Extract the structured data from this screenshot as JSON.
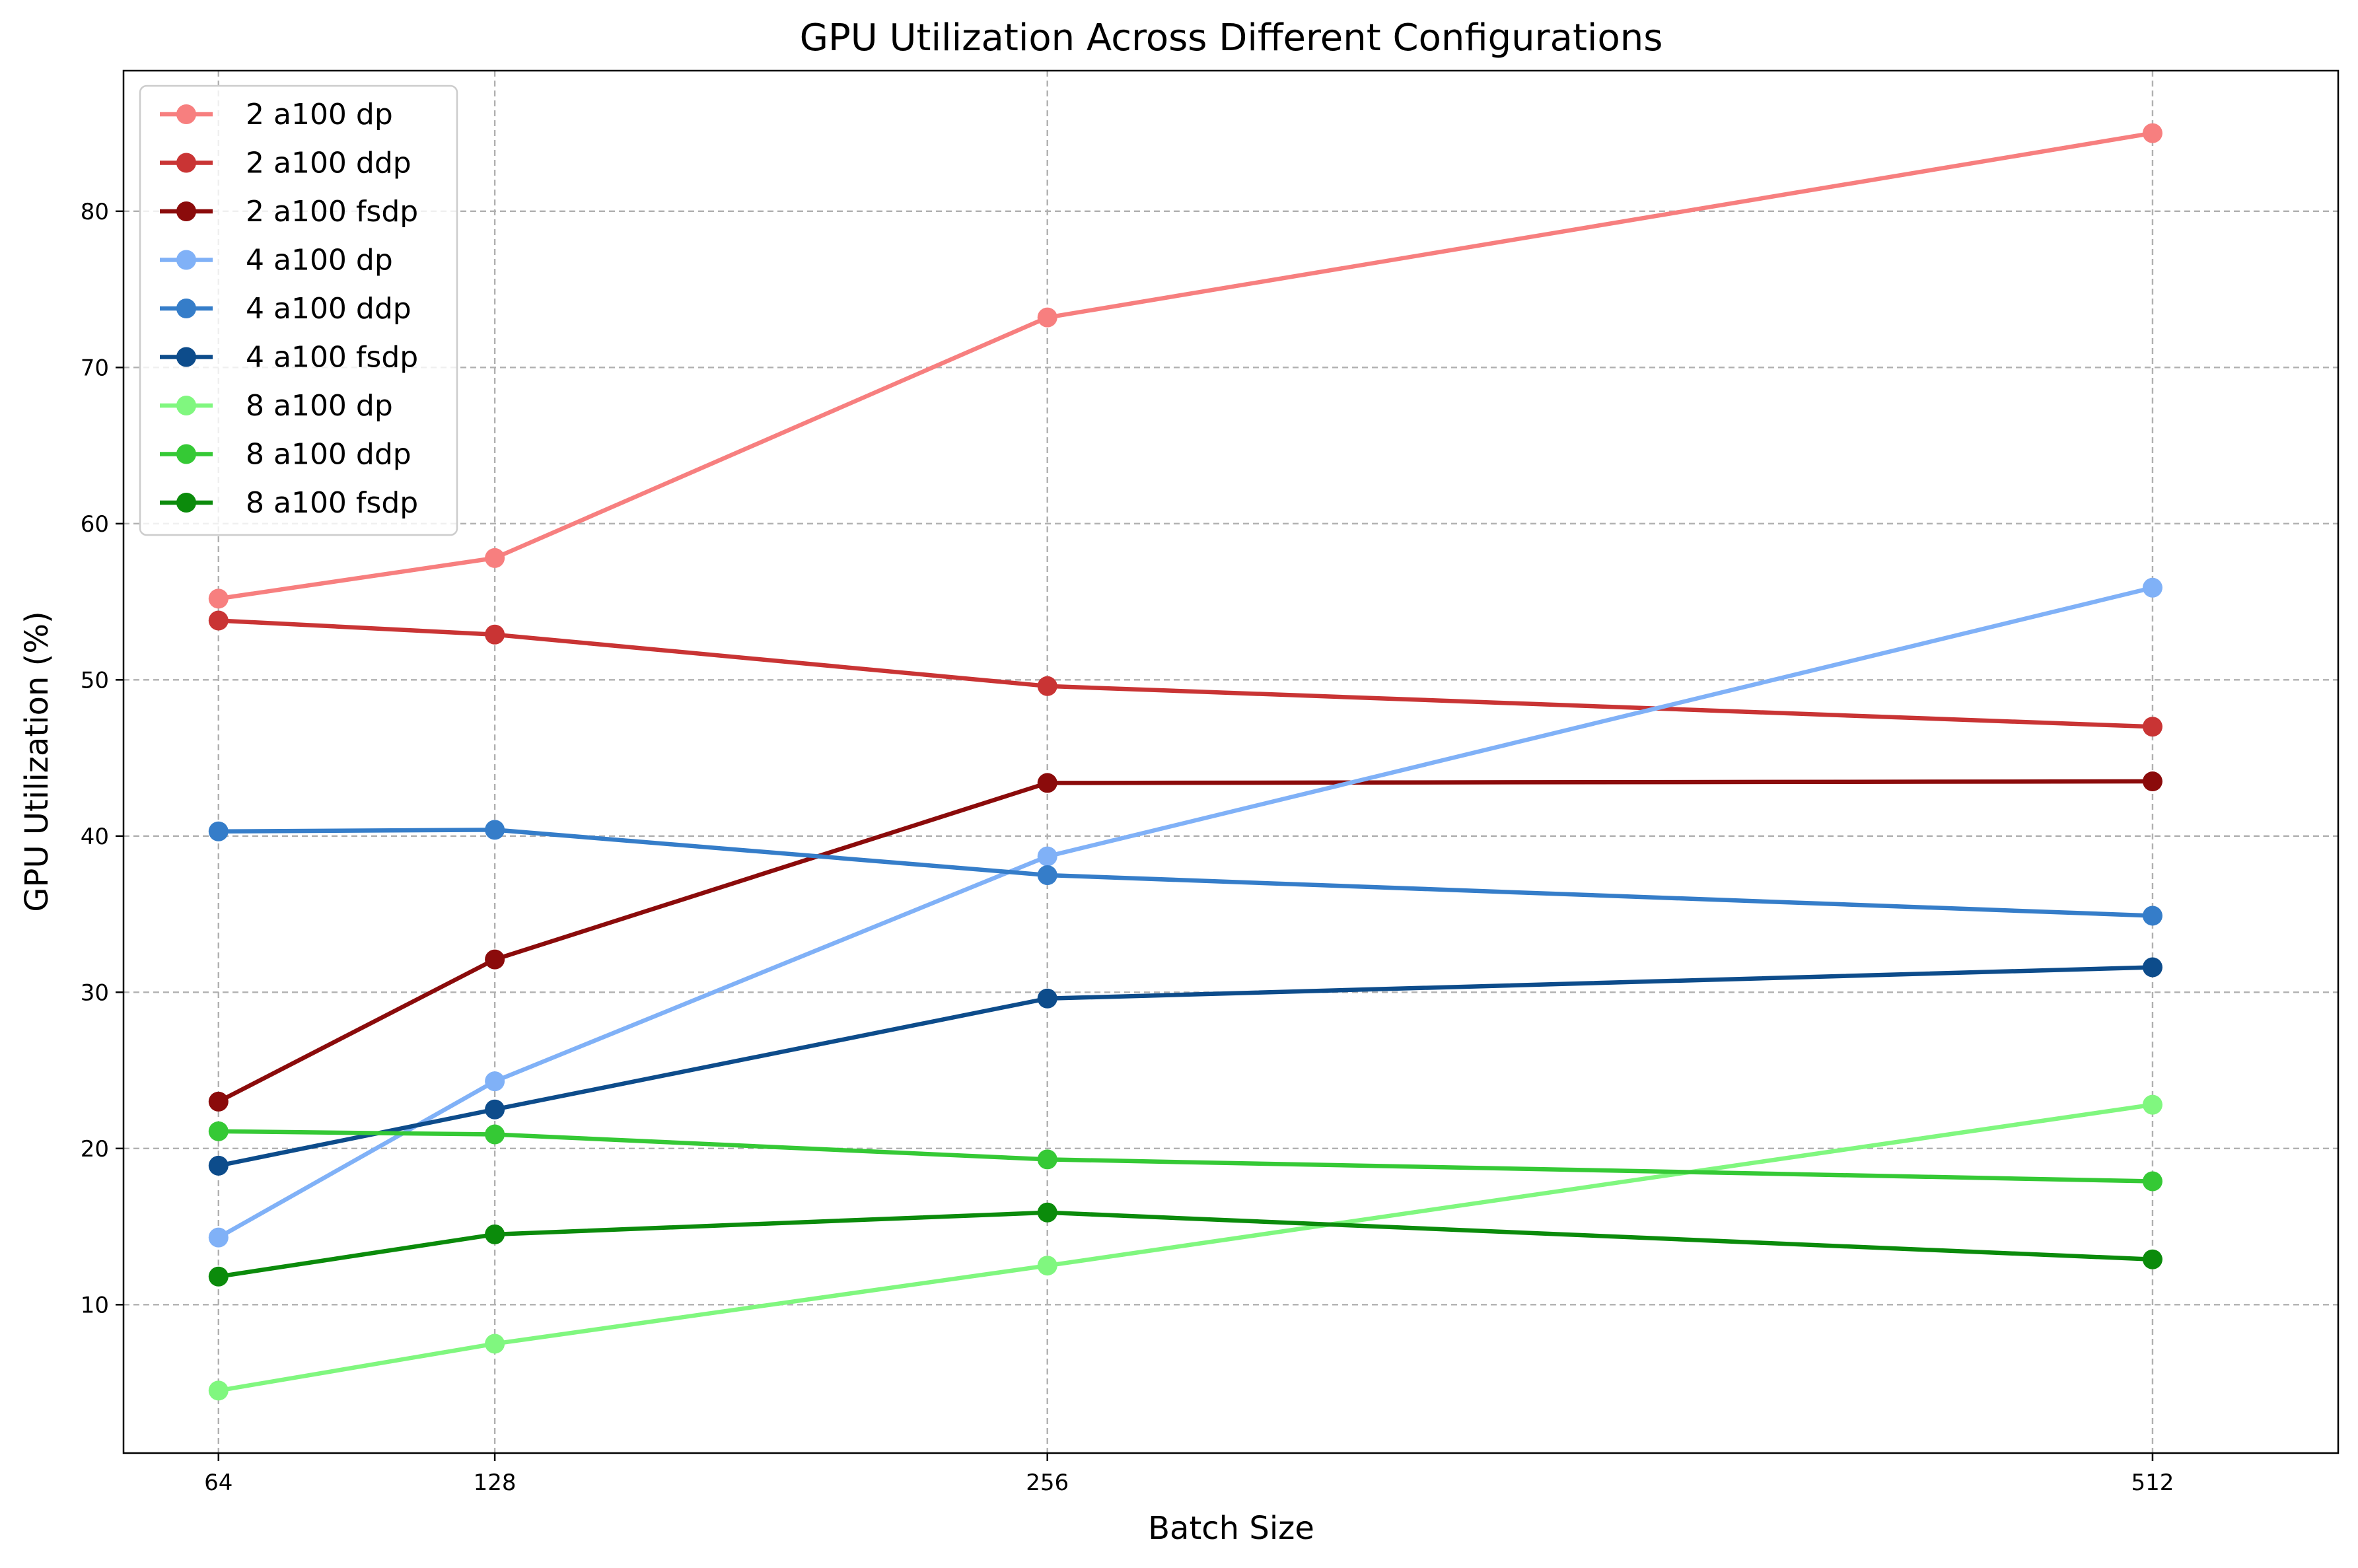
{
  "chart_data": {
    "type": "line",
    "title": "GPU Utilization Across Different Configurations",
    "xlabel": "Batch Size",
    "ylabel": "GPU Utilization (%)",
    "x": [
      64,
      128,
      256,
      512
    ],
    "x_tick_labels": [
      "64",
      "128",
      "256",
      "512"
    ],
    "xlim": [
      42,
      555
    ],
    "ylim": [
      0.5,
      89
    ],
    "y_ticks": [
      10,
      20,
      30,
      40,
      50,
      60,
      70,
      80
    ],
    "grid": true,
    "legend_position": "upper-left",
    "series": [
      {
        "name": "2 a100 dp",
        "color": "#f77f7f",
        "values": [
          55.2,
          57.8,
          73.2,
          85.0
        ]
      },
      {
        "name": "2 a100 ddp",
        "color": "#c93434",
        "values": [
          53.8,
          52.9,
          49.6,
          47.0
        ]
      },
      {
        "name": "2 a100 fsdp",
        "color": "#8b0b0b",
        "values": [
          23.0,
          32.1,
          43.4,
          43.5
        ]
      },
      {
        "name": "4 a100 dp",
        "color": "#80b1f7",
        "values": [
          14.3,
          24.3,
          38.7,
          55.9
        ]
      },
      {
        "name": "4 a100 ddp",
        "color": "#357dc9",
        "values": [
          40.3,
          40.4,
          37.5,
          34.9
        ]
      },
      {
        "name": "4 a100 fsdp",
        "color": "#0d4c8b",
        "values": [
          18.9,
          22.5,
          29.6,
          31.6
        ]
      },
      {
        "name": "8 a100 dp",
        "color": "#80f77f",
        "values": [
          4.5,
          7.5,
          12.5,
          22.8
        ]
      },
      {
        "name": "8 a100 ddp",
        "color": "#35c935",
        "values": [
          21.1,
          20.9,
          19.3,
          17.9
        ]
      },
      {
        "name": "8 a100 fsdp",
        "color": "#0b8b0b",
        "values": [
          11.8,
          14.5,
          15.9,
          12.9
        ]
      }
    ]
  }
}
